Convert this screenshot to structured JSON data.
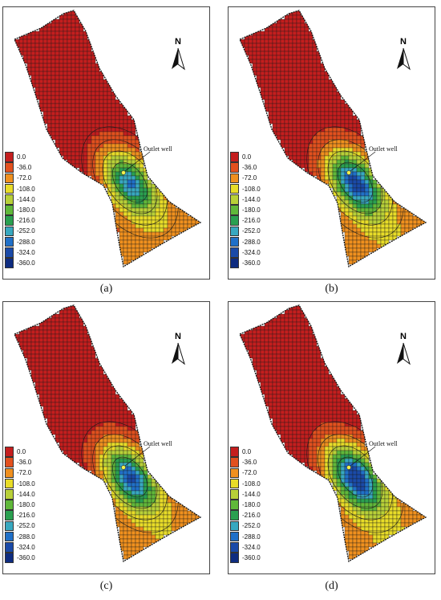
{
  "figure": {
    "legend": {
      "labels": [
        "0.0",
        "-36.0",
        "-72.0",
        "-108.0",
        "-144.0",
        "-180.0",
        "-216.0",
        "-252.0",
        "-288.0",
        "-324.0",
        "-360.0"
      ],
      "colors": [
        "#c41e1e",
        "#e2501e",
        "#f0901e",
        "#e8dc28",
        "#b8d038",
        "#60b83a",
        "#2aa050",
        "#38a8c0",
        "#2070c8",
        "#1a4aa8",
        "#0e2c80"
      ]
    },
    "north_label": "N",
    "well_label": "Outlet well",
    "panels": [
      {
        "caption": "(a)",
        "depth_scale": 0.8
      },
      {
        "caption": "(b)",
        "depth_scale": 0.95
      },
      {
        "caption": "(c)",
        "depth_scale": 0.9
      },
      {
        "caption": "(d)",
        "depth_scale": 1.0
      }
    ],
    "colors": {
      "grid": "#1a1a1a",
      "outline": "#111111",
      "well_marker": "#f2f04a"
    }
  }
}
